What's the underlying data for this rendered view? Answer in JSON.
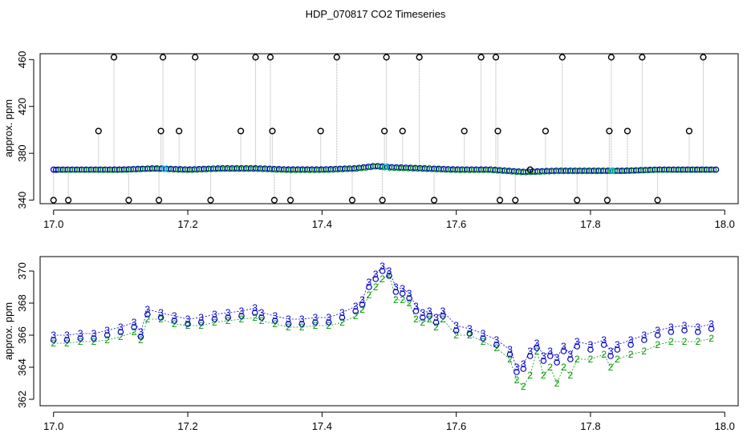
{
  "figure": {
    "title": "HDP_070817  CO2 Timeseries"
  },
  "colors": {
    "blue": "#0000cc",
    "green": "#009900",
    "black": "#000000",
    "cyan": "#00cccc",
    "spike": "#aaaaaa"
  },
  "chart_data": [
    {
      "type": "scatter",
      "title": "HDP_070817  CO2 Timeseries",
      "xlabel": "",
      "ylabel": "approx. ppm",
      "xlim": [
        16.98,
        18.02
      ],
      "ylim": [
        337,
        465
      ],
      "xticks": [
        17.0,
        17.2,
        17.4,
        17.6,
        17.8,
        18.0
      ],
      "xtick_labels": [
        "17.0",
        "17.2",
        "17.4",
        "17.6",
        "17.8",
        "18.0"
      ],
      "yticks": [
        340,
        380,
        420,
        460
      ],
      "ytick_labels": [
        "340",
        "380",
        "420",
        "460"
      ],
      "grid": false,
      "baseline_series": {
        "marker": "circle",
        "x": [
          17.0,
          17.05,
          17.1,
          17.15,
          17.2,
          17.25,
          17.3,
          17.35,
          17.4,
          17.45,
          17.48,
          17.5,
          17.55,
          17.6,
          17.65,
          17.7,
          17.75,
          17.8,
          17.85,
          17.9,
          17.95,
          17.99
        ],
        "y": [
          366,
          366,
          366,
          367,
          366,
          367,
          367,
          366,
          366,
          367,
          369,
          368,
          367,
          366,
          366,
          364,
          365,
          365,
          365,
          366,
          366,
          366
        ]
      },
      "outliers": {
        "marker": "circle-black",
        "x": [
          17.0,
          17.022,
          17.067,
          17.09,
          17.112,
          17.157,
          17.16,
          17.163,
          17.187,
          17.211,
          17.234,
          17.279,
          17.301,
          17.323,
          17.326,
          17.329,
          17.353,
          17.398,
          17.422,
          17.445,
          17.49,
          17.493,
          17.496,
          17.52,
          17.545,
          17.567,
          17.612,
          17.637,
          17.659,
          17.662,
          17.665,
          17.688,
          17.71,
          17.733,
          17.758,
          17.78,
          17.825,
          17.828,
          17.831,
          17.855,
          17.877,
          17.9,
          17.947,
          17.968
        ],
        "y": [
          340,
          340,
          399,
          462,
          340,
          340,
          399,
          462,
          399,
          462,
          340,
          399,
          462,
          462,
          399,
          340,
          340,
          399,
          462,
          340,
          340,
          399,
          462,
          399,
          462,
          340,
          399,
          462,
          462,
          399,
          340,
          340,
          366,
          399,
          462,
          340,
          340,
          399,
          462,
          399,
          462,
          340,
          399,
          462
        ]
      }
    },
    {
      "type": "scatter",
      "xlabel": "",
      "ylabel": "approx. ppm",
      "xlim": [
        16.98,
        18.02
      ],
      "ylim": [
        361.6,
        370.9
      ],
      "xticks": [
        17.0,
        17.2,
        17.4,
        17.6,
        17.8,
        18.0
      ],
      "xtick_labels": [
        "17.0",
        "17.2",
        "17.4",
        "17.6",
        "17.8",
        "18.0"
      ],
      "yticks": [
        362,
        364,
        366,
        368,
        370
      ],
      "ytick_labels": [
        "362",
        "364",
        "366",
        "368",
        "370"
      ],
      "grid": false,
      "series": [
        {
          "marker_label": "2",
          "color": "green",
          "x": [
            17.0,
            17.02,
            17.04,
            17.06,
            17.08,
            17.1,
            17.12,
            17.13,
            17.14,
            17.16,
            17.18,
            17.2,
            17.22,
            17.24,
            17.26,
            17.28,
            17.3,
            17.31,
            17.33,
            17.35,
            17.37,
            17.39,
            17.41,
            17.43,
            17.45,
            17.46,
            17.47,
            17.48,
            17.49,
            17.5,
            17.51,
            17.52,
            17.53,
            17.54,
            17.55,
            17.56,
            17.57,
            17.58,
            17.6,
            17.62,
            17.64,
            17.66,
            17.68,
            17.69,
            17.7,
            17.71,
            17.72,
            17.73,
            17.74,
            17.75,
            17.76,
            17.77,
            17.78,
            17.8,
            17.82,
            17.83,
            17.84,
            17.86,
            17.88,
            17.9,
            17.92,
            17.94,
            17.96,
            17.98
          ],
          "y": [
            365.5,
            365.5,
            365.6,
            365.6,
            365.7,
            365.9,
            366.2,
            365.7,
            367.0,
            367.0,
            366.7,
            366.6,
            366.6,
            366.8,
            366.9,
            367.0,
            367.1,
            366.9,
            366.7,
            366.5,
            366.5,
            366.6,
            366.6,
            366.8,
            367.2,
            367.6,
            368.5,
            369.0,
            369.5,
            369.8,
            368.2,
            368.2,
            368.0,
            367.0,
            366.8,
            367.0,
            366.5,
            367.0,
            366.0,
            366.0,
            365.6,
            365.2,
            364.5,
            363.2,
            362.8,
            363.5,
            365.0,
            363.5,
            364.0,
            363.0,
            364.0,
            363.5,
            364.5,
            364.5,
            364.8,
            364.0,
            364.5,
            364.8,
            365.0,
            365.4,
            365.6,
            365.6,
            365.6,
            365.8
          ]
        },
        {
          "marker_label": "3",
          "color": "blue",
          "x": [
            17.0,
            17.02,
            17.04,
            17.06,
            17.08,
            17.1,
            17.12,
            17.13,
            17.14,
            17.16,
            17.18,
            17.2,
            17.22,
            17.24,
            17.26,
            17.28,
            17.3,
            17.31,
            17.33,
            17.35,
            17.37,
            17.39,
            17.41,
            17.43,
            17.45,
            17.46,
            17.47,
            17.48,
            17.49,
            17.5,
            17.51,
            17.52,
            17.53,
            17.54,
            17.55,
            17.56,
            17.57,
            17.58,
            17.6,
            17.62,
            17.64,
            17.66,
            17.68,
            17.69,
            17.7,
            17.71,
            17.72,
            17.73,
            17.74,
            17.75,
            17.76,
            17.77,
            17.78,
            17.8,
            17.82,
            17.83,
            17.84,
            17.86,
            17.88,
            17.9,
            17.92,
            17.94,
            17.96,
            17.98
          ],
          "y": [
            366.0,
            366.0,
            366.1,
            366.1,
            366.3,
            366.5,
            366.8,
            366.2,
            367.6,
            367.4,
            367.2,
            367.0,
            367.1,
            367.3,
            367.4,
            367.5,
            367.7,
            367.4,
            367.2,
            367.0,
            367.0,
            367.1,
            367.1,
            367.4,
            367.8,
            368.2,
            369.3,
            369.8,
            370.3,
            370.0,
            369.0,
            368.9,
            368.6,
            367.8,
            367.4,
            367.5,
            367.1,
            367.5,
            366.6,
            366.4,
            366.1,
            365.7,
            365.1,
            364.0,
            364.2,
            365.0,
            365.5,
            364.7,
            365.0,
            364.6,
            365.3,
            364.8,
            365.6,
            365.4,
            365.7,
            365.0,
            365.4,
            365.7,
            366.0,
            366.3,
            366.5,
            366.6,
            366.5,
            366.7
          ]
        }
      ]
    }
  ]
}
